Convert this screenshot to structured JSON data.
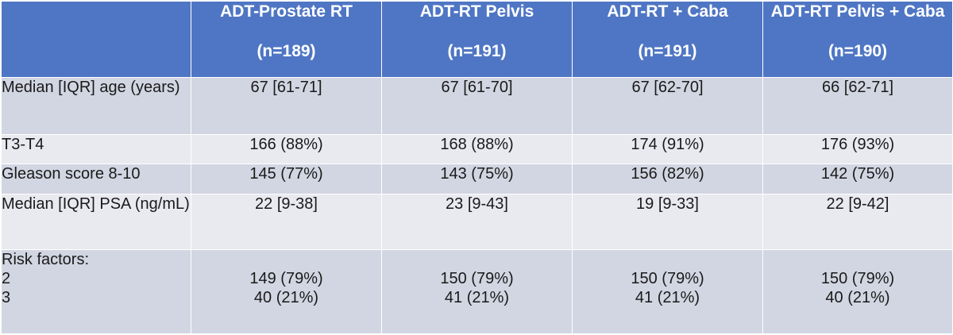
{
  "table": {
    "columns": [
      {
        "name": "",
        "n": ""
      },
      {
        "name": "ADT-Prostate RT",
        "n": "(n=189)"
      },
      {
        "name": "ADT-RT Pelvis",
        "n": "(n=191)"
      },
      {
        "name": "ADT-RT + Caba",
        "n": "(n=191)"
      },
      {
        "name": "ADT-RT Pelvis + Caba",
        "n": "(n=190)"
      }
    ],
    "rows": {
      "age": {
        "label": "Median [IQR] age (years)",
        "values": [
          "67 [61-71]",
          "67 [61-70]",
          "67 [62-70]",
          "66 [62-71]"
        ]
      },
      "t3t4": {
        "label": "T3-T4",
        "values": [
          "166 (88%)",
          "168 (88%)",
          "174 (91%)",
          "176 (93%)"
        ]
      },
      "gleason": {
        "label": "Gleason score 8-10",
        "values": [
          "145 (77%)",
          "143 (75%)",
          "156 (82%)",
          "142 (75%)"
        ]
      },
      "psa": {
        "label": "Median [IQR] PSA (ng/mL)",
        "values": [
          "22 [9-38]",
          "23 [9-43]",
          "19 [9-33]",
          "22 [9-42]"
        ]
      },
      "risk": {
        "label": "Risk factors:",
        "sub_labels": [
          "2",
          "3"
        ],
        "values_2": [
          "149 (79%)",
          "150 (79%)",
          "150 (79%)",
          "150 (79%)"
        ],
        "values_3": [
          "40 (21%)",
          "41 (21%)",
          "41 (21%)",
          "40 (21%)"
        ]
      }
    }
  },
  "colors": {
    "header_bg": "#4f76c4",
    "row_shade": "#d2d6e2",
    "row_light": "#e8eaf0"
  }
}
